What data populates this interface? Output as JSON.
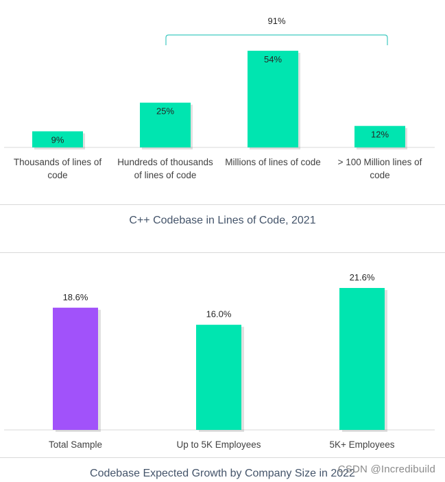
{
  "colors": {
    "teal": "#00E5B0",
    "purple": "#A152FA",
    "axis": "#d9d9d9",
    "text": "#262626",
    "title": "#44546a",
    "bracket": "#3fc9c0"
  },
  "chart_data": [
    {
      "type": "bar",
      "title": "C++ Codebase in Lines of Code, 2021",
      "categories": [
        [
          "Thousands of lines of",
          "code"
        ],
        [
          "Hundreds of thousands",
          "of lines of code"
        ],
        [
          "Millions of lines of code"
        ],
        [
          "> 100 Million lines of",
          "code"
        ]
      ],
      "values": [
        9,
        25,
        54,
        12
      ],
      "value_labels": [
        "9%",
        "25%",
        "54%",
        "12%"
      ],
      "label_position": "inside-top",
      "ylim": [
        0,
        54
      ],
      "annotation": {
        "text": "91%",
        "span": [
          1,
          3
        ]
      }
    },
    {
      "type": "bar",
      "title": "Codebase Expected Growth by Company Size in 2022",
      "categories": [
        [
          "Total Sample"
        ],
        [
          "Up to 5K Employees"
        ],
        [
          "5K+ Employees"
        ]
      ],
      "values": [
        18.6,
        16.0,
        21.6
      ],
      "value_labels": [
        "18.6%",
        "16.0%",
        "21.6%"
      ],
      "label_position": "above",
      "ylim": [
        0,
        21.6
      ],
      "highlight_index": 0
    }
  ],
  "watermark": "CSDN @Incredibuild"
}
